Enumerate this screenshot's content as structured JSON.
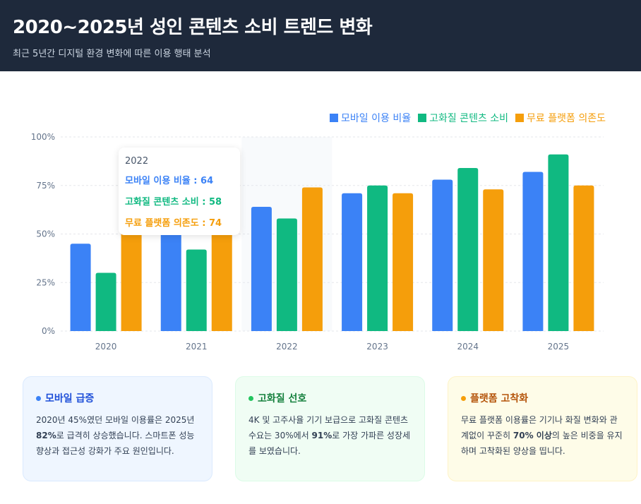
{
  "header": {
    "title": "2020~2025년 성인 콘텐츠 소비 트렌드 변화",
    "subtitle": "최근 5년간 디지털 환경 변화에 따른 이용 행태 분석"
  },
  "chart_data": {
    "type": "bar",
    "categories": [
      "2020",
      "2021",
      "2022",
      "2023",
      "2024",
      "2025"
    ],
    "series": [
      {
        "name": "모바일 이용 비율",
        "color": "#3b82f6",
        "values": [
          45,
          55,
          64,
          71,
          78,
          82
        ]
      },
      {
        "name": "고화질 콘텐츠 소비",
        "color": "#10b981",
        "values": [
          30,
          42,
          58,
          75,
          84,
          91
        ]
      },
      {
        "name": "무료 플랫폼 의존도",
        "color": "#f59e0b",
        "values": [
          70,
          72,
          74,
          71,
          73,
          75
        ]
      }
    ],
    "yticks": [
      "0%",
      "25%",
      "50%",
      "75%",
      "100%"
    ],
    "ylim": [
      0,
      100
    ],
    "grid": true,
    "legend": "top-right",
    "highlight": "2022"
  },
  "tooltip": {
    "title": "2022",
    "lines": [
      "모바일 이용 비율 : 64",
      "고화질 콘텐츠 소비 : 58",
      "무료 플랫폼 의존도 : 74"
    ]
  },
  "cards": [
    {
      "title": "모바일 급증",
      "pre": "2020년 45%였던 모바일 이용률은 2025년 ",
      "bold": "82%",
      "post": "로 급격히 상승했습니다. 스마트폰 성능 향상과 접근성 강화가 주요 원인입니다.",
      "bg": "#eff6ff",
      "border": "#dbeafe",
      "color": "#1d4ed8",
      "dot": "#3b82f6"
    },
    {
      "title": "고화질 선호",
      "pre": "4K 및 고주사율 기기 보급으로 고화질 콘텐츠 수요는 30%에서 ",
      "bold": "91%",
      "post": "로 가장 가파른 성장세를 보였습니다.",
      "bg": "#f0fdf4",
      "border": "#dcfce7",
      "color": "#15803d",
      "dot": "#22c55e"
    },
    {
      "title": "플랫폼 고착화",
      "pre": "무료 플랫폼 이용률은 기기나 화질 변화와 관계없이 꾸준히 ",
      "bold": "70% 이상",
      "post": "의 높은 비중을 유지하며 고착화된 양상을 띱니다.",
      "bg": "#fefce8",
      "border": "#fef3c7",
      "color": "#b45309",
      "dot": "#f59e0b"
    }
  ]
}
